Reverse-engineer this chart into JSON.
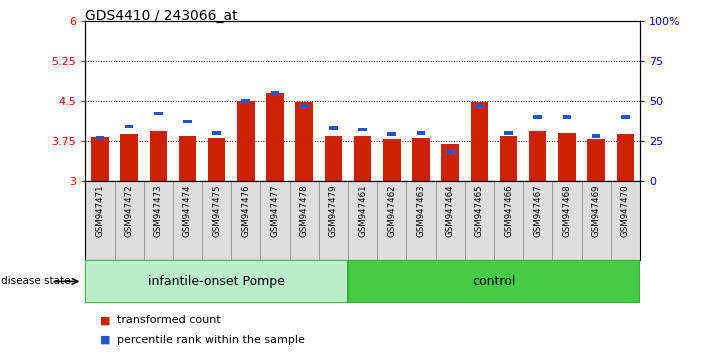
{
  "title": "GDS4410 / 243066_at",
  "samples": [
    "GSM947471",
    "GSM947472",
    "GSM947473",
    "GSM947474",
    "GSM947475",
    "GSM947476",
    "GSM947477",
    "GSM947478",
    "GSM947479",
    "GSM947461",
    "GSM947462",
    "GSM947463",
    "GSM947464",
    "GSM947465",
    "GSM947466",
    "GSM947467",
    "GSM947468",
    "GSM947469",
    "GSM947470"
  ],
  "red_values": [
    3.82,
    3.87,
    3.93,
    3.84,
    3.81,
    4.5,
    4.65,
    4.47,
    3.83,
    3.83,
    3.78,
    3.81,
    3.69,
    4.47,
    3.83,
    3.93,
    3.9,
    3.78,
    3.87
  ],
  "blue_pct": [
    27,
    34,
    42,
    37,
    30,
    50,
    55,
    47,
    33,
    32,
    29,
    30,
    18,
    47,
    30,
    40,
    40,
    28,
    40
  ],
  "y_min": 3.0,
  "y_max": 6.0,
  "left_ticks": [
    3.0,
    3.75,
    4.5,
    5.25,
    6.0
  ],
  "left_labels": [
    "3",
    "3.75",
    "4.5",
    "5.25",
    "6"
  ],
  "right_ticks": [
    0,
    25,
    50,
    75,
    100
  ],
  "right_labels": [
    "0",
    "25",
    "50",
    "75",
    "100%"
  ],
  "dotted_lines": [
    3.75,
    4.5,
    5.25
  ],
  "group1_label": "infantile-onset Pompe",
  "group2_label": "control",
  "group1_count": 9,
  "group2_count": 10,
  "disease_state_label": "disease state",
  "legend1": "transformed count",
  "legend2": "percentile rank within the sample",
  "bar_color": "#cc2200",
  "blue_color": "#2255cc",
  "group1_bg": "#bbeecc",
  "group2_bg": "#44cc44",
  "group_border": "#33aa33",
  "tick_cell_bg": "#dddddd",
  "tick_cell_border": "#888888",
  "bar_base": 3.0,
  "bar_width": 0.6
}
